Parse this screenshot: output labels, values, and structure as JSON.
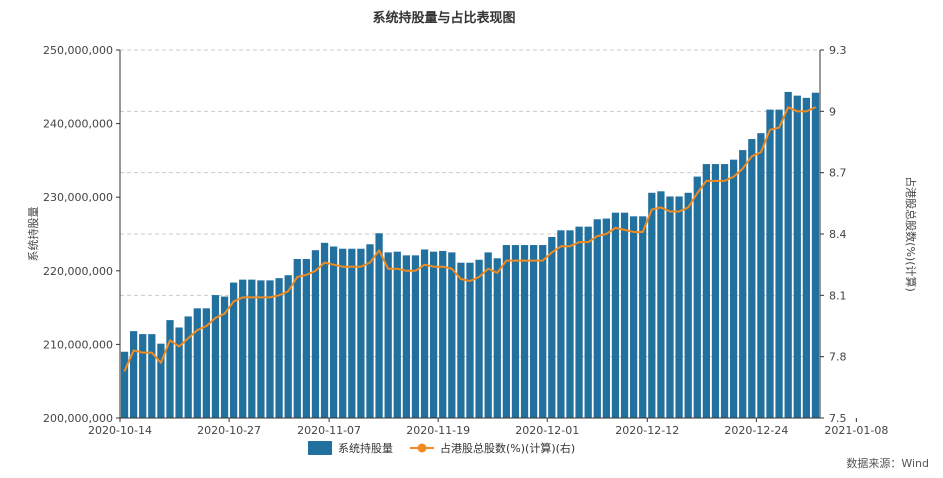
{
  "chart_data": {
    "type": "bar",
    "title": "系统持股量与占比表现图",
    "source_note": "数据来源：Wind",
    "xlabel": "",
    "ylabel": "系统持股量",
    "y2label": "占港股总股数(%)(计算)",
    "ylim": [
      200000000,
      250000000
    ],
    "y2lim": [
      7.5,
      9.3
    ],
    "yticks": [
      "200,000,000",
      "210,000,000",
      "220,000,000",
      "230,000,000",
      "240,000,000",
      "250,000,000"
    ],
    "y2ticks": [
      "7.5",
      "7.8",
      "8.1",
      "8.4",
      "8.7",
      "9",
      "9.3"
    ],
    "grid": true,
    "legend_position": "bottom",
    "colors": {
      "bar": "#22709e",
      "line": "#f08b1f",
      "grid": "#cccccc"
    },
    "x_tick_labels": [
      {
        "index": 0,
        "label": "2020-10-14"
      },
      {
        "index": 12,
        "label": "2020-10-27"
      },
      {
        "index": 23,
        "label": "2020-11-07"
      },
      {
        "index": 35,
        "label": "2020-11-19"
      },
      {
        "index": 47,
        "label": "2020-12-01"
      },
      {
        "index": 58,
        "label": "2020-12-12"
      },
      {
        "index": 70,
        "label": "2020-12-24"
      },
      {
        "index": 81,
        "label": "2021-01-08"
      }
    ],
    "series": [
      {
        "name": "系统持股量",
        "kind": "bar",
        "axis": "left",
        "values": [
          209000000,
          211800000,
          211400000,
          211400000,
          210100000,
          213300000,
          212300000,
          213800000,
          214900000,
          214900000,
          216700000,
          216500000,
          218400000,
          218800000,
          218800000,
          218700000,
          218700000,
          219000000,
          219400000,
          221600000,
          221600000,
          222800000,
          223800000,
          223300000,
          223000000,
          223000000,
          223000000,
          223600000,
          225100000,
          222500000,
          222600000,
          222100000,
          222100000,
          222900000,
          222600000,
          222700000,
          222500000,
          221100000,
          221100000,
          221500000,
          222500000,
          221700000,
          223500000,
          223500000,
          223500000,
          223500000,
          223500000,
          224600000,
          225500000,
          225500000,
          226000000,
          226000000,
          227000000,
          227100000,
          227900000,
          227900000,
          227400000,
          227400000,
          230600000,
          230800000,
          230100000,
          230100000,
          230600000,
          232800000,
          234500000,
          234500000,
          234500000,
          235100000,
          236400000,
          237900000,
          238700000,
          241900000,
          241900000,
          244300000,
          243800000,
          243500000,
          244200000
        ]
      },
      {
        "name": "占港股总股数(%)(计算)(右)",
        "kind": "line",
        "axis": "right",
        "values": [
          7.73,
          7.83,
          7.82,
          7.82,
          7.77,
          7.88,
          7.85,
          7.89,
          7.93,
          7.95,
          7.99,
          8.01,
          8.07,
          8.09,
          8.09,
          8.09,
          8.09,
          8.1,
          8.12,
          8.19,
          8.2,
          8.22,
          8.26,
          8.25,
          8.24,
          8.24,
          8.24,
          8.26,
          8.32,
          8.23,
          8.23,
          8.22,
          8.22,
          8.25,
          8.24,
          8.24,
          8.23,
          8.18,
          8.17,
          8.19,
          8.23,
          8.21,
          8.27,
          8.27,
          8.27,
          8.27,
          8.27,
          8.31,
          8.34,
          8.34,
          8.36,
          8.36,
          8.39,
          8.4,
          8.43,
          8.42,
          8.41,
          8.41,
          8.52,
          8.53,
          8.51,
          8.51,
          8.53,
          8.6,
          8.66,
          8.66,
          8.66,
          8.68,
          8.72,
          8.78,
          8.8,
          8.91,
          8.92,
          9.02,
          9.0,
          9.0,
          9.02
        ]
      }
    ]
  }
}
